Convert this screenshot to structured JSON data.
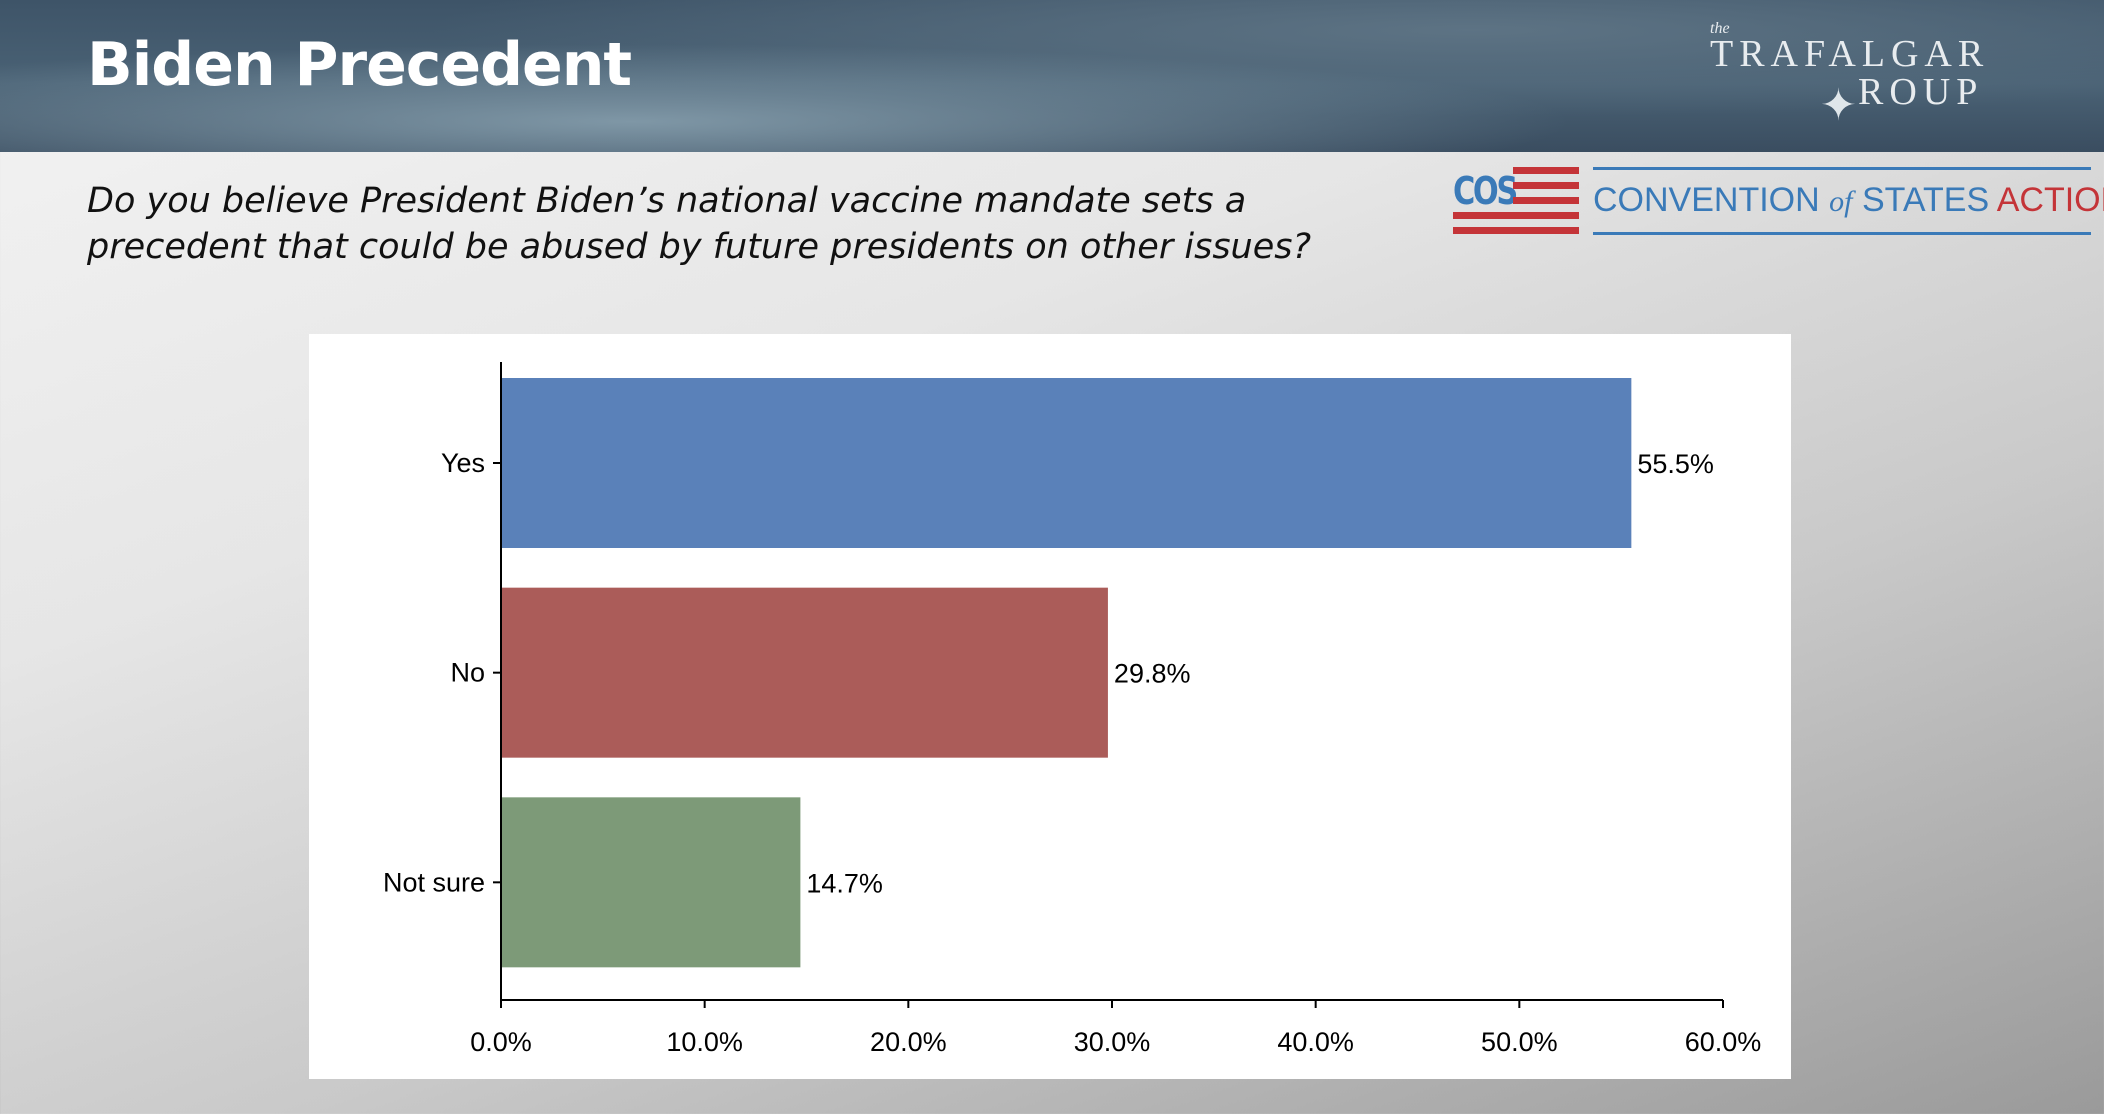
{
  "header": {
    "title": "Biden Precedent"
  },
  "logos": {
    "trafalgar": {
      "the": "the",
      "line1": "TRAFALGAR",
      "line2": "ROUP"
    },
    "cos": {
      "mark": "COS",
      "convention": "CONVENTION",
      "of": "of",
      "states": "STATES",
      "action": "ACTION"
    }
  },
  "question": "Do you believe President Biden’s national vaccine mandate sets a precedent that could be abused by future presidents on other issues?",
  "chart_data": {
    "type": "bar",
    "orientation": "horizontal",
    "categories": [
      "Yes",
      "No",
      "Not sure"
    ],
    "values": [
      55.5,
      29.8,
      14.7
    ],
    "value_labels": [
      "55.5%",
      "29.8%",
      "14.7%"
    ],
    "colors": [
      "#5a81b9",
      "#ab5c59",
      "#7d9a78"
    ],
    "xlim": [
      0,
      60
    ],
    "xticks": [
      0,
      10,
      20,
      30,
      40,
      50,
      60
    ],
    "xtick_labels": [
      "0.0%",
      "10.0%",
      "20.0%",
      "30.0%",
      "40.0%",
      "50.0%",
      "60.0%"
    ],
    "title": "",
    "xlabel": "",
    "ylabel": "",
    "grid": false,
    "legend": "none"
  }
}
